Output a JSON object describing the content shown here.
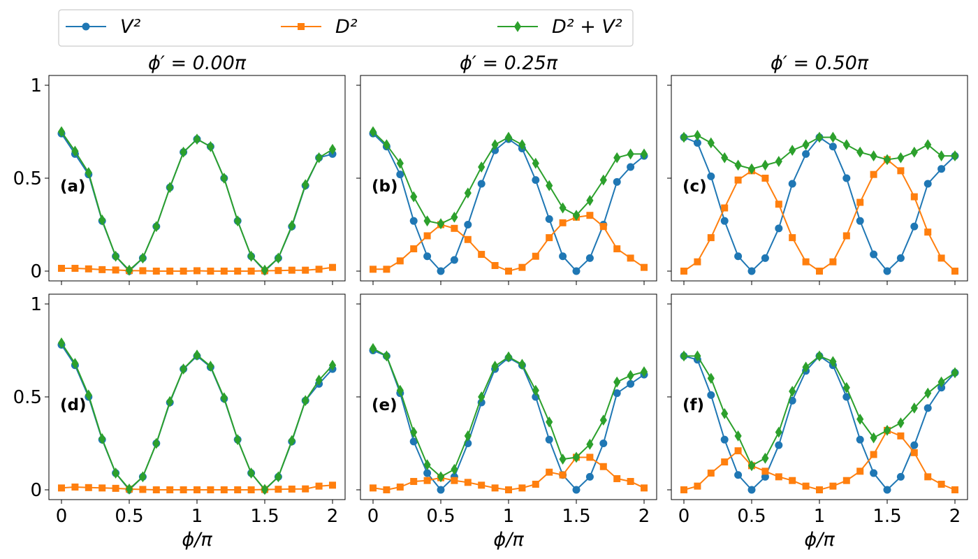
{
  "legend": {
    "entries": [
      {
        "label": "V²",
        "series": "V2"
      },
      {
        "label": "D²",
        "series": "D2"
      },
      {
        "label": "D² + V²",
        "series": "D2V2"
      }
    ]
  },
  "colors": {
    "V2": "#1f77b4",
    "D2": "#ff7f0e",
    "D2V2": "#2ca02c"
  },
  "markers": {
    "V2": "circle",
    "D2": "square",
    "D2V2": "diamond"
  },
  "chart_data": [
    {
      "type": "line",
      "panel": "(a)",
      "title": "ϕ′ = 0.00π",
      "xlabel": "",
      "xlim": [
        0,
        2
      ],
      "ylim": [
        0,
        1
      ],
      "xticks": [
        "0",
        "0.5",
        "1",
        "1.5",
        "2"
      ],
      "yticks": [
        "0",
        "0.5",
        "1"
      ],
      "x": [
        0,
        0.1,
        0.2,
        0.3,
        0.4,
        0.5,
        0.6,
        0.7,
        0.8,
        0.9,
        1.0,
        1.1,
        1.2,
        1.3,
        1.4,
        1.5,
        1.6,
        1.7,
        1.8,
        1.9,
        2.0
      ],
      "series": [
        {
          "key": "V2",
          "values": [
            0.74,
            0.63,
            0.52,
            0.27,
            0.08,
            0.0,
            0.07,
            0.24,
            0.45,
            0.64,
            0.71,
            0.67,
            0.5,
            0.27,
            0.08,
            0.0,
            0.07,
            0.24,
            0.46,
            0.61,
            0.63
          ]
        },
        {
          "key": "D2",
          "values": [
            0.015,
            0.015,
            0.012,
            0.008,
            0.006,
            0.003,
            0.002,
            0.0,
            0.0,
            0.0,
            0.002,
            0.0,
            0.0,
            0.0,
            0.0,
            0.002,
            0.003,
            0.005,
            0.005,
            0.01,
            0.02
          ]
        },
        {
          "key": "D2V2",
          "values": [
            0.75,
            0.645,
            0.53,
            0.275,
            0.08,
            0.005,
            0.07,
            0.24,
            0.45,
            0.64,
            0.71,
            0.67,
            0.5,
            0.27,
            0.08,
            0.005,
            0.07,
            0.245,
            0.465,
            0.61,
            0.655
          ]
        }
      ]
    },
    {
      "type": "line",
      "panel": "(b)",
      "title": "ϕ′ = 0.25π",
      "xlabel": "",
      "xlim": [
        0,
        2
      ],
      "ylim": [
        0,
        1
      ],
      "xticks": [
        "0",
        "0.5",
        "1",
        "1.5",
        "2"
      ],
      "yticks": [
        "0",
        "0.5",
        "1"
      ],
      "x": [
        0,
        0.1,
        0.2,
        0.3,
        0.4,
        0.5,
        0.6,
        0.7,
        0.8,
        0.9,
        1.0,
        1.1,
        1.2,
        1.3,
        1.4,
        1.5,
        1.6,
        1.7,
        1.8,
        1.9,
        2.0
      ],
      "series": [
        {
          "key": "V2",
          "values": [
            0.74,
            0.67,
            0.52,
            0.27,
            0.08,
            0.0,
            0.06,
            0.25,
            0.47,
            0.65,
            0.71,
            0.66,
            0.49,
            0.28,
            0.08,
            0.0,
            0.07,
            0.25,
            0.48,
            0.56,
            0.62
          ]
        },
        {
          "key": "D2",
          "values": [
            0.01,
            0.01,
            0.055,
            0.12,
            0.19,
            0.25,
            0.23,
            0.17,
            0.09,
            0.03,
            0.0,
            0.02,
            0.08,
            0.18,
            0.26,
            0.29,
            0.3,
            0.24,
            0.12,
            0.07,
            0.02
          ]
        },
        {
          "key": "D2V2",
          "values": [
            0.75,
            0.68,
            0.58,
            0.4,
            0.27,
            0.255,
            0.29,
            0.42,
            0.56,
            0.68,
            0.72,
            0.68,
            0.58,
            0.46,
            0.34,
            0.3,
            0.38,
            0.49,
            0.61,
            0.63,
            0.63
          ]
        }
      ]
    },
    {
      "type": "line",
      "panel": "(c)",
      "title": "ϕ′ = 0.50π",
      "xlabel": "",
      "xlim": [
        0,
        2
      ],
      "ylim": [
        0,
        1
      ],
      "xticks": [
        "0",
        "0.5",
        "1",
        "1.5",
        "2"
      ],
      "yticks": [
        "0",
        "0.5",
        "1"
      ],
      "x": [
        0,
        0.1,
        0.2,
        0.3,
        0.4,
        0.5,
        0.6,
        0.7,
        0.8,
        0.9,
        1.0,
        1.1,
        1.2,
        1.3,
        1.4,
        1.5,
        1.6,
        1.7,
        1.8,
        1.9,
        2.0
      ],
      "series": [
        {
          "key": "V2",
          "values": [
            0.72,
            0.69,
            0.51,
            0.27,
            0.08,
            0.0,
            0.07,
            0.23,
            0.47,
            0.63,
            0.72,
            0.67,
            0.5,
            0.27,
            0.09,
            0.0,
            0.07,
            0.24,
            0.47,
            0.55,
            0.62
          ]
        },
        {
          "key": "D2",
          "values": [
            0.0,
            0.05,
            0.18,
            0.34,
            0.49,
            0.54,
            0.5,
            0.36,
            0.18,
            0.05,
            0.0,
            0.05,
            0.19,
            0.37,
            0.52,
            0.6,
            0.54,
            0.4,
            0.21,
            0.07,
            0.0
          ]
        },
        {
          "key": "D2V2",
          "values": [
            0.72,
            0.73,
            0.69,
            0.61,
            0.57,
            0.55,
            0.57,
            0.59,
            0.65,
            0.68,
            0.72,
            0.72,
            0.68,
            0.64,
            0.62,
            0.6,
            0.61,
            0.64,
            0.68,
            0.62,
            0.62
          ]
        }
      ]
    },
    {
      "type": "line",
      "panel": "(d)",
      "title": "",
      "xlabel": "ϕ/π",
      "xlim": [
        0,
        2
      ],
      "ylim": [
        0,
        1
      ],
      "xticks": [
        "0",
        "0.5",
        "1",
        "1.5",
        "2"
      ],
      "yticks": [
        "0",
        "0.5",
        "1"
      ],
      "x": [
        0,
        0.1,
        0.2,
        0.3,
        0.4,
        0.5,
        0.6,
        0.7,
        0.8,
        0.9,
        1.0,
        1.1,
        1.2,
        1.3,
        1.4,
        1.5,
        1.6,
        1.7,
        1.8,
        1.9,
        2.0
      ],
      "series": [
        {
          "key": "V2",
          "values": [
            0.78,
            0.67,
            0.5,
            0.27,
            0.09,
            0.0,
            0.07,
            0.25,
            0.47,
            0.65,
            0.72,
            0.66,
            0.49,
            0.27,
            0.09,
            0.0,
            0.07,
            0.26,
            0.48,
            0.57,
            0.65
          ]
        },
        {
          "key": "D2",
          "values": [
            0.01,
            0.015,
            0.012,
            0.01,
            0.008,
            0.004,
            0.002,
            0.0,
            0.0,
            0.0,
            0.0,
            0.0,
            0.0,
            0.0,
            0.0,
            0.002,
            0.003,
            0.004,
            0.005,
            0.02,
            0.025
          ]
        },
        {
          "key": "D2V2",
          "values": [
            0.79,
            0.68,
            0.51,
            0.275,
            0.09,
            0.004,
            0.07,
            0.25,
            0.475,
            0.65,
            0.725,
            0.665,
            0.495,
            0.27,
            0.09,
            0.002,
            0.07,
            0.265,
            0.48,
            0.59,
            0.67
          ]
        }
      ]
    },
    {
      "type": "line",
      "panel": "(e)",
      "title": "",
      "xlabel": "ϕ/π",
      "xlim": [
        0,
        2
      ],
      "ylim": [
        0,
        1
      ],
      "xticks": [
        "0",
        "0.5",
        "1",
        "1.5",
        "2"
      ],
      "yticks": [
        "0",
        "0.5",
        "1"
      ],
      "x": [
        0,
        0.1,
        0.2,
        0.3,
        0.4,
        0.5,
        0.6,
        0.7,
        0.8,
        0.9,
        1.0,
        1.1,
        1.2,
        1.3,
        1.4,
        1.5,
        1.6,
        1.7,
        1.8,
        1.9,
        2.0
      ],
      "series": [
        {
          "key": "V2",
          "values": [
            0.75,
            0.72,
            0.52,
            0.26,
            0.09,
            0.0,
            0.07,
            0.25,
            0.47,
            0.65,
            0.71,
            0.67,
            0.5,
            0.27,
            0.08,
            0.0,
            0.07,
            0.25,
            0.52,
            0.57,
            0.62
          ]
        },
        {
          "key": "D2",
          "values": [
            0.01,
            0.0,
            0.015,
            0.045,
            0.05,
            0.065,
            0.05,
            0.04,
            0.025,
            0.01,
            0.0,
            0.01,
            0.03,
            0.095,
            0.08,
            0.175,
            0.175,
            0.125,
            0.06,
            0.045,
            0.01
          ]
        },
        {
          "key": "D2V2",
          "values": [
            0.76,
            0.72,
            0.535,
            0.31,
            0.135,
            0.07,
            0.11,
            0.29,
            0.5,
            0.665,
            0.715,
            0.675,
            0.535,
            0.365,
            0.165,
            0.175,
            0.245,
            0.375,
            0.58,
            0.615,
            0.635
          ]
        }
      ]
    },
    {
      "type": "line",
      "panel": "(f)",
      "title": "",
      "xlabel": "ϕ/π",
      "xlim": [
        0,
        2
      ],
      "ylim": [
        0,
        1
      ],
      "xticks": [
        "0",
        "0.5",
        "1",
        "1.5",
        "2"
      ],
      "yticks": [
        "0",
        "0.5",
        "1"
      ],
      "x": [
        0,
        0.1,
        0.2,
        0.3,
        0.4,
        0.5,
        0.6,
        0.7,
        0.8,
        0.9,
        1.0,
        1.1,
        1.2,
        1.3,
        1.4,
        1.5,
        1.6,
        1.7,
        1.8,
        1.9,
        2.0
      ],
      "series": [
        {
          "key": "V2",
          "values": [
            0.72,
            0.7,
            0.51,
            0.27,
            0.08,
            0.0,
            0.07,
            0.24,
            0.48,
            0.64,
            0.72,
            0.67,
            0.5,
            0.27,
            0.09,
            0.0,
            0.07,
            0.24,
            0.44,
            0.55,
            0.63
          ]
        },
        {
          "key": "D2",
          "values": [
            0.0,
            0.02,
            0.09,
            0.15,
            0.21,
            0.13,
            0.1,
            0.07,
            0.05,
            0.02,
            0.0,
            0.02,
            0.05,
            0.1,
            0.19,
            0.32,
            0.29,
            0.2,
            0.07,
            0.03,
            0.0
          ]
        },
        {
          "key": "D2V2",
          "values": [
            0.72,
            0.72,
            0.6,
            0.41,
            0.29,
            0.13,
            0.17,
            0.31,
            0.53,
            0.66,
            0.72,
            0.69,
            0.55,
            0.38,
            0.28,
            0.32,
            0.36,
            0.44,
            0.52,
            0.58,
            0.63
          ]
        }
      ]
    }
  ]
}
